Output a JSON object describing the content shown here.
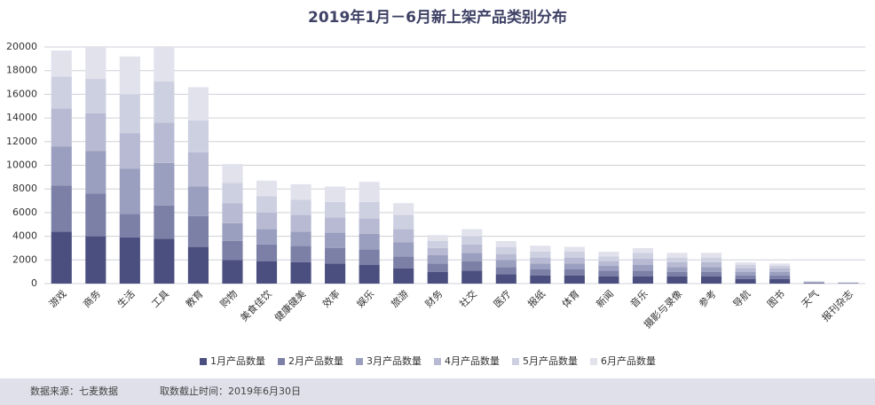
{
  "chart_data": {
    "type": "stacked_bar",
    "title": "2019年1月－6月新上架产品类别分布",
    "categories": [
      "游戏",
      "商务",
      "生活",
      "工具",
      "教育",
      "购物",
      "美食佳饮",
      "健康健美",
      "效率",
      "娱乐",
      "旅游",
      "财务",
      "社交",
      "医疗",
      "报纸",
      "体育",
      "新闻",
      "音乐",
      "摄影与录像",
      "参考",
      "导航",
      "图书",
      "天气",
      "报刊杂志"
    ],
    "series": [
      {
        "name": "1月产品数量",
        "color": "#4b4f7f",
        "values": [
          4400,
          4000,
          3900,
          3800,
          3100,
          2000,
          1900,
          1800,
          1700,
          1600,
          1300,
          1000,
          1100,
          800,
          700,
          700,
          600,
          600,
          600,
          600,
          400,
          400,
          50,
          30
        ]
      },
      {
        "name": "2月产品数量",
        "color": "#7c80a7",
        "values": [
          3900,
          3600,
          2000,
          2800,
          2600,
          1600,
          1400,
          1400,
          1300,
          1300,
          1000,
          700,
          800,
          600,
          500,
          500,
          500,
          500,
          400,
          400,
          300,
          300,
          40,
          20
        ]
      },
      {
        "name": "3月产品数量",
        "color": "#9b9fbf",
        "values": [
          3300,
          3600,
          3800,
          3600,
          2500,
          1500,
          1300,
          1200,
          1300,
          1300,
          1200,
          700,
          700,
          600,
          500,
          500,
          400,
          500,
          400,
          400,
          300,
          300,
          40,
          20
        ]
      },
      {
        "name": "4月产品数量",
        "color": "#b7bad2",
        "values": [
          3200,
          3200,
          3000,
          3400,
          2900,
          1700,
          1400,
          1400,
          1300,
          1300,
          1100,
          600,
          700,
          500,
          500,
          500,
          400,
          500,
          400,
          400,
          300,
          300,
          30,
          20
        ]
      },
      {
        "name": "5月产品数量",
        "color": "#cdd0e1",
        "values": [
          2700,
          2900,
          3300,
          3500,
          2700,
          1700,
          1400,
          1300,
          1300,
          1400,
          1200,
          600,
          700,
          600,
          500,
          500,
          400,
          500,
          400,
          400,
          300,
          200,
          30,
          10
        ]
      },
      {
        "name": "6月产品数量",
        "color": "#e1e2ec",
        "values": [
          2200,
          2700,
          3200,
          2900,
          2800,
          1600,
          1300,
          1300,
          1300,
          1700,
          1000,
          500,
          600,
          500,
          500,
          400,
          400,
          400,
          400,
          400,
          200,
          200,
          20,
          10
        ]
      }
    ],
    "ylim": [
      0,
      20000
    ],
    "yticks": [
      0,
      2000,
      4000,
      6000,
      8000,
      10000,
      12000,
      14000,
      16000,
      18000,
      20000
    ],
    "grid": true,
    "source": "数据来源：七麦数据",
    "note": "取数截止时间：2019年6月30日"
  }
}
